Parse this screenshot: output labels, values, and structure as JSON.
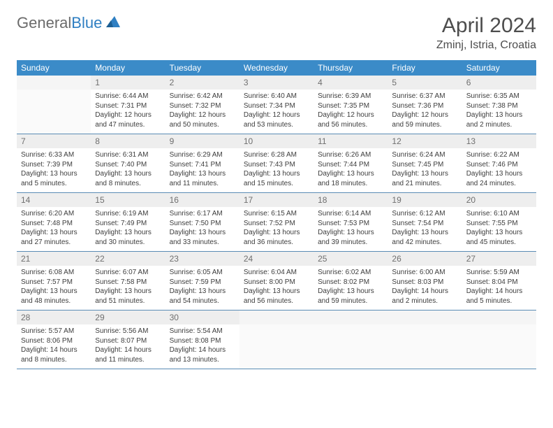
{
  "brand": {
    "name_gray": "General",
    "name_blue": "Blue"
  },
  "title": "April 2024",
  "location": "Zminj, Istria, Croatia",
  "colors": {
    "header_bg": "#3b8bc8",
    "header_text": "#ffffff",
    "daynum_bg": "#eeeeee",
    "daynum_text": "#6f6f6f",
    "body_text": "#3d3d3d",
    "rule": "#5a8cb5",
    "logo_gray": "#6b6b6b",
    "logo_blue": "#2f7fc2"
  },
  "weekdays": [
    "Sunday",
    "Monday",
    "Tuesday",
    "Wednesday",
    "Thursday",
    "Friday",
    "Saturday"
  ],
  "weeks": [
    [
      null,
      {
        "n": "1",
        "sr": "Sunrise: 6:44 AM",
        "ss": "Sunset: 7:31 PM",
        "d1": "Daylight: 12 hours",
        "d2": "and 47 minutes."
      },
      {
        "n": "2",
        "sr": "Sunrise: 6:42 AM",
        "ss": "Sunset: 7:32 PM",
        "d1": "Daylight: 12 hours",
        "d2": "and 50 minutes."
      },
      {
        "n": "3",
        "sr": "Sunrise: 6:40 AM",
        "ss": "Sunset: 7:34 PM",
        "d1": "Daylight: 12 hours",
        "d2": "and 53 minutes."
      },
      {
        "n": "4",
        "sr": "Sunrise: 6:39 AM",
        "ss": "Sunset: 7:35 PM",
        "d1": "Daylight: 12 hours",
        "d2": "and 56 minutes."
      },
      {
        "n": "5",
        "sr": "Sunrise: 6:37 AM",
        "ss": "Sunset: 7:36 PM",
        "d1": "Daylight: 12 hours",
        "d2": "and 59 minutes."
      },
      {
        "n": "6",
        "sr": "Sunrise: 6:35 AM",
        "ss": "Sunset: 7:38 PM",
        "d1": "Daylight: 13 hours",
        "d2": "and 2 minutes."
      }
    ],
    [
      {
        "n": "7",
        "sr": "Sunrise: 6:33 AM",
        "ss": "Sunset: 7:39 PM",
        "d1": "Daylight: 13 hours",
        "d2": "and 5 minutes."
      },
      {
        "n": "8",
        "sr": "Sunrise: 6:31 AM",
        "ss": "Sunset: 7:40 PM",
        "d1": "Daylight: 13 hours",
        "d2": "and 8 minutes."
      },
      {
        "n": "9",
        "sr": "Sunrise: 6:29 AM",
        "ss": "Sunset: 7:41 PM",
        "d1": "Daylight: 13 hours",
        "d2": "and 11 minutes."
      },
      {
        "n": "10",
        "sr": "Sunrise: 6:28 AM",
        "ss": "Sunset: 7:43 PM",
        "d1": "Daylight: 13 hours",
        "d2": "and 15 minutes."
      },
      {
        "n": "11",
        "sr": "Sunrise: 6:26 AM",
        "ss": "Sunset: 7:44 PM",
        "d1": "Daylight: 13 hours",
        "d2": "and 18 minutes."
      },
      {
        "n": "12",
        "sr": "Sunrise: 6:24 AM",
        "ss": "Sunset: 7:45 PM",
        "d1": "Daylight: 13 hours",
        "d2": "and 21 minutes."
      },
      {
        "n": "13",
        "sr": "Sunrise: 6:22 AM",
        "ss": "Sunset: 7:46 PM",
        "d1": "Daylight: 13 hours",
        "d2": "and 24 minutes."
      }
    ],
    [
      {
        "n": "14",
        "sr": "Sunrise: 6:20 AM",
        "ss": "Sunset: 7:48 PM",
        "d1": "Daylight: 13 hours",
        "d2": "and 27 minutes."
      },
      {
        "n": "15",
        "sr": "Sunrise: 6:19 AM",
        "ss": "Sunset: 7:49 PM",
        "d1": "Daylight: 13 hours",
        "d2": "and 30 minutes."
      },
      {
        "n": "16",
        "sr": "Sunrise: 6:17 AM",
        "ss": "Sunset: 7:50 PM",
        "d1": "Daylight: 13 hours",
        "d2": "and 33 minutes."
      },
      {
        "n": "17",
        "sr": "Sunrise: 6:15 AM",
        "ss": "Sunset: 7:52 PM",
        "d1": "Daylight: 13 hours",
        "d2": "and 36 minutes."
      },
      {
        "n": "18",
        "sr": "Sunrise: 6:14 AM",
        "ss": "Sunset: 7:53 PM",
        "d1": "Daylight: 13 hours",
        "d2": "and 39 minutes."
      },
      {
        "n": "19",
        "sr": "Sunrise: 6:12 AM",
        "ss": "Sunset: 7:54 PM",
        "d1": "Daylight: 13 hours",
        "d2": "and 42 minutes."
      },
      {
        "n": "20",
        "sr": "Sunrise: 6:10 AM",
        "ss": "Sunset: 7:55 PM",
        "d1": "Daylight: 13 hours",
        "d2": "and 45 minutes."
      }
    ],
    [
      {
        "n": "21",
        "sr": "Sunrise: 6:08 AM",
        "ss": "Sunset: 7:57 PM",
        "d1": "Daylight: 13 hours",
        "d2": "and 48 minutes."
      },
      {
        "n": "22",
        "sr": "Sunrise: 6:07 AM",
        "ss": "Sunset: 7:58 PM",
        "d1": "Daylight: 13 hours",
        "d2": "and 51 minutes."
      },
      {
        "n": "23",
        "sr": "Sunrise: 6:05 AM",
        "ss": "Sunset: 7:59 PM",
        "d1": "Daylight: 13 hours",
        "d2": "and 54 minutes."
      },
      {
        "n": "24",
        "sr": "Sunrise: 6:04 AM",
        "ss": "Sunset: 8:00 PM",
        "d1": "Daylight: 13 hours",
        "d2": "and 56 minutes."
      },
      {
        "n": "25",
        "sr": "Sunrise: 6:02 AM",
        "ss": "Sunset: 8:02 PM",
        "d1": "Daylight: 13 hours",
        "d2": "and 59 minutes."
      },
      {
        "n": "26",
        "sr": "Sunrise: 6:00 AM",
        "ss": "Sunset: 8:03 PM",
        "d1": "Daylight: 14 hours",
        "d2": "and 2 minutes."
      },
      {
        "n": "27",
        "sr": "Sunrise: 5:59 AM",
        "ss": "Sunset: 8:04 PM",
        "d1": "Daylight: 14 hours",
        "d2": "and 5 minutes."
      }
    ],
    [
      {
        "n": "28",
        "sr": "Sunrise: 5:57 AM",
        "ss": "Sunset: 8:06 PM",
        "d1": "Daylight: 14 hours",
        "d2": "and 8 minutes."
      },
      {
        "n": "29",
        "sr": "Sunrise: 5:56 AM",
        "ss": "Sunset: 8:07 PM",
        "d1": "Daylight: 14 hours",
        "d2": "and 11 minutes."
      },
      {
        "n": "30",
        "sr": "Sunrise: 5:54 AM",
        "ss": "Sunset: 8:08 PM",
        "d1": "Daylight: 14 hours",
        "d2": "and 13 minutes."
      },
      null,
      null,
      null,
      null
    ]
  ]
}
